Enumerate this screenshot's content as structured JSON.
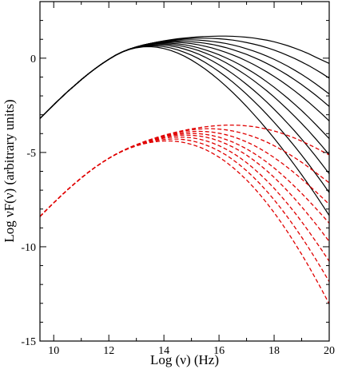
{
  "chart_data": {
    "type": "line",
    "title": "",
    "xlabel": "Log (ν)  (Hz)",
    "ylabel": "Log νF(ν)    (arbitrary units)",
    "xlim": [
      9.5,
      20
    ],
    "ylim": [
      -15,
      3
    ],
    "grid": false,
    "legend": "none",
    "x_ticks": [
      10,
      12,
      14,
      16,
      18,
      20
    ],
    "x_tick_labels": [
      "10",
      "12",
      "14",
      "16",
      "18",
      "20"
    ],
    "y_ticks": [
      0,
      -5,
      -10,
      -15
    ],
    "y_tick_labels": [
      "0",
      "-5",
      "-10",
      "-15"
    ],
    "x": [
      9.5,
      9.75,
      10.0,
      10.25,
      10.5,
      10.75,
      11.0,
      11.25,
      11.5,
      11.75,
      12.0,
      12.25,
      12.5,
      12.75,
      13.0,
      13.25,
      13.5,
      13.75,
      14.0,
      14.25,
      14.5,
      14.75,
      15.0,
      15.25,
      15.5,
      15.75,
      16.0,
      16.25,
      16.5,
      16.75,
      17.0,
      17.25,
      17.5,
      17.75,
      18.0,
      18.25,
      18.5,
      18.75,
      19.0,
      19.25,
      19.5,
      19.75,
      20.0
    ],
    "series": [
      {
        "color": "#000000",
        "style": "solid",
        "values": [
          -3.2,
          -2.83,
          -2.47,
          -2.12,
          -1.78,
          -1.46,
          -1.14,
          -0.84,
          -0.56,
          -0.3,
          -0.06,
          0.16,
          0.34,
          0.48,
          0.6,
          0.7,
          0.78,
          0.85,
          0.92,
          0.98,
          1.03,
          1.07,
          1.1,
          1.13,
          1.15,
          1.16,
          1.17,
          1.17,
          1.16,
          1.14,
          1.11,
          1.07,
          1.01,
          0.95,
          0.87,
          0.77,
          0.66,
          0.53,
          0.39,
          0.24,
          0.06,
          -0.11,
          -0.28
        ]
      },
      {
        "color": "#000000",
        "style": "solid",
        "values": [
          -3.2,
          -2.83,
          -2.47,
          -2.12,
          -1.78,
          -1.46,
          -1.14,
          -0.84,
          -0.56,
          -0.3,
          -0.06,
          0.16,
          0.34,
          0.48,
          0.6,
          0.7,
          0.78,
          0.85,
          0.91,
          0.96,
          1.0,
          1.03,
          1.05,
          1.06,
          1.06,
          1.05,
          1.03,
          1.0,
          0.96,
          0.9,
          0.83,
          0.75,
          0.66,
          0.55,
          0.43,
          0.29,
          0.14,
          -0.02,
          -0.2,
          -0.39,
          -0.6,
          -0.82,
          -1.06
        ]
      },
      {
        "color": "#000000",
        "style": "solid",
        "values": [
          -3.2,
          -2.83,
          -2.47,
          -2.12,
          -1.78,
          -1.46,
          -1.14,
          -0.84,
          -0.56,
          -0.3,
          -0.06,
          0.16,
          0.34,
          0.48,
          0.6,
          0.7,
          0.78,
          0.84,
          0.89,
          0.93,
          0.96,
          0.97,
          0.97,
          0.96,
          0.93,
          0.89,
          0.84,
          0.78,
          0.7,
          0.61,
          0.5,
          0.38,
          0.25,
          0.1,
          -0.06,
          -0.24,
          -0.43,
          -0.64,
          -0.86,
          -1.1,
          -1.35,
          -1.62,
          -1.9
        ]
      },
      {
        "color": "#000000",
        "style": "solid",
        "values": [
          -3.2,
          -2.83,
          -2.47,
          -2.12,
          -1.78,
          -1.46,
          -1.14,
          -0.84,
          -0.56,
          -0.3,
          -0.06,
          0.16,
          0.34,
          0.48,
          0.6,
          0.7,
          0.77,
          0.83,
          0.87,
          0.89,
          0.9,
          0.89,
          0.87,
          0.84,
          0.79,
          0.73,
          0.65,
          0.56,
          0.45,
          0.33,
          0.2,
          0.05,
          -0.11,
          -0.29,
          -0.48,
          -0.69,
          -0.91,
          -1.15,
          -1.4,
          -1.67,
          -1.95,
          -2.25,
          -2.56
        ]
      },
      {
        "color": "#000000",
        "style": "solid",
        "values": [
          -3.2,
          -2.83,
          -2.47,
          -2.12,
          -1.78,
          -1.46,
          -1.14,
          -0.84,
          -0.56,
          -0.3,
          -0.06,
          0.16,
          0.34,
          0.48,
          0.6,
          0.69,
          0.76,
          0.81,
          0.84,
          0.85,
          0.84,
          0.81,
          0.77,
          0.71,
          0.63,
          0.54,
          0.43,
          0.31,
          0.17,
          0.02,
          -0.15,
          -0.33,
          -0.53,
          -0.74,
          -0.97,
          -1.21,
          -1.47,
          -1.74,
          -2.03,
          -2.33,
          -2.65,
          -2.98,
          -3.33
        ]
      },
      {
        "color": "#000000",
        "style": "solid",
        "values": [
          -3.2,
          -2.83,
          -2.47,
          -2.12,
          -1.78,
          -1.46,
          -1.14,
          -0.84,
          -0.56,
          -0.3,
          -0.06,
          0.16,
          0.34,
          0.48,
          0.59,
          0.68,
          0.74,
          0.78,
          0.8,
          0.79,
          0.76,
          0.71,
          0.64,
          0.55,
          0.44,
          0.32,
          0.18,
          0.02,
          -0.15,
          -0.34,
          -0.55,
          -0.77,
          -1.01,
          -1.27,
          -1.54,
          -1.83,
          -2.13,
          -2.45,
          -2.78,
          -3.13,
          -3.5,
          -3.88,
          -4.27
        ]
      },
      {
        "color": "#000000",
        "style": "solid",
        "values": [
          -3.2,
          -2.83,
          -2.47,
          -2.12,
          -1.78,
          -1.46,
          -1.14,
          -0.84,
          -0.56,
          -0.3,
          -0.06,
          0.16,
          0.34,
          0.48,
          0.59,
          0.67,
          0.72,
          0.75,
          0.75,
          0.73,
          0.68,
          0.61,
          0.52,
          0.41,
          0.27,
          0.12,
          -0.05,
          -0.24,
          -0.45,
          -0.68,
          -0.92,
          -1.18,
          -1.46,
          -1.75,
          -2.06,
          -2.39,
          -2.73,
          -3.09,
          -3.46,
          -3.85,
          -4.26,
          -4.68,
          -5.12
        ]
      },
      {
        "color": "#000000",
        "style": "solid",
        "values": [
          -3.2,
          -2.83,
          -2.47,
          -2.12,
          -1.78,
          -1.46,
          -1.14,
          -0.84,
          -0.56,
          -0.3,
          -0.06,
          0.16,
          0.34,
          0.48,
          0.58,
          0.65,
          0.69,
          0.71,
          0.69,
          0.65,
          0.58,
          0.48,
          0.36,
          0.22,
          0.05,
          -0.14,
          -0.35,
          -0.58,
          -0.83,
          -1.1,
          -1.39,
          -1.69,
          -2.01,
          -2.35,
          -2.71,
          -3.08,
          -3.47,
          -3.87,
          -4.29,
          -4.73,
          -5.18,
          -5.65,
          -6.13
        ]
      },
      {
        "color": "#000000",
        "style": "solid",
        "values": [
          -3.2,
          -2.83,
          -2.47,
          -2.12,
          -1.78,
          -1.46,
          -1.14,
          -0.84,
          -0.56,
          -0.3,
          -0.06,
          0.16,
          0.34,
          0.47,
          0.57,
          0.63,
          0.66,
          0.65,
          0.61,
          0.54,
          0.44,
          0.31,
          0.16,
          -0.02,
          -0.23,
          -0.46,
          -0.71,
          -0.98,
          -1.27,
          -1.58,
          -1.91,
          -2.26,
          -2.62,
          -3.0,
          -3.4,
          -3.81,
          -4.24,
          -4.68,
          -5.14,
          -5.62,
          -6.11,
          -6.61,
          -7.13
        ]
      },
      {
        "color": "#000000",
        "style": "solid",
        "values": [
          -3.2,
          -2.83,
          -2.47,
          -2.12,
          -1.78,
          -1.46,
          -1.14,
          -0.84,
          -0.56,
          -0.3,
          -0.06,
          0.16,
          0.33,
          0.46,
          0.55,
          0.6,
          0.61,
          0.58,
          0.51,
          0.41,
          0.27,
          0.1,
          -0.1,
          -0.33,
          -0.58,
          -0.86,
          -1.16,
          -1.48,
          -1.82,
          -2.18,
          -2.56,
          -2.96,
          -3.37,
          -3.8,
          -4.25,
          -4.71,
          -5.19,
          -5.68,
          -6.18,
          -6.7,
          -7.23,
          -7.78,
          -8.34
        ]
      },
      {
        "color": "#e00000",
        "style": "dashed",
        "values": [
          -8.4,
          -8.03,
          -7.67,
          -7.32,
          -6.98,
          -6.66,
          -6.35,
          -6.06,
          -5.79,
          -5.54,
          -5.31,
          -5.1,
          -4.91,
          -4.74,
          -4.59,
          -4.45,
          -4.32,
          -4.2,
          -4.09,
          -3.99,
          -3.9,
          -3.82,
          -3.75,
          -3.69,
          -3.64,
          -3.6,
          -3.57,
          -3.55,
          -3.55,
          -3.56,
          -3.59,
          -3.63,
          -3.69,
          -3.77,
          -3.86,
          -3.97,
          -4.1,
          -4.24,
          -4.4,
          -4.57,
          -4.75,
          -4.94,
          -5.13
        ]
      },
      {
        "color": "#e00000",
        "style": "dashed",
        "values": [
          -8.4,
          -8.03,
          -7.67,
          -7.32,
          -6.98,
          -6.66,
          -6.35,
          -6.06,
          -5.79,
          -5.54,
          -5.31,
          -5.1,
          -4.91,
          -4.74,
          -4.59,
          -4.45,
          -4.32,
          -4.2,
          -4.1,
          -4.0,
          -3.92,
          -3.85,
          -3.8,
          -3.76,
          -3.74,
          -3.74,
          -3.76,
          -3.8,
          -3.86,
          -3.94,
          -4.04,
          -4.16,
          -4.3,
          -4.46,
          -4.64,
          -4.84,
          -5.05,
          -5.28,
          -5.52,
          -5.78,
          -6.05,
          -6.33,
          -6.61
        ]
      },
      {
        "color": "#e00000",
        "style": "dashed",
        "values": [
          -8.4,
          -8.03,
          -7.67,
          -7.32,
          -6.98,
          -6.66,
          -6.35,
          -6.06,
          -5.79,
          -5.54,
          -5.31,
          -5.1,
          -4.91,
          -4.74,
          -4.59,
          -4.45,
          -4.33,
          -4.22,
          -4.12,
          -4.04,
          -3.97,
          -3.92,
          -3.89,
          -3.88,
          -3.89,
          -3.92,
          -3.98,
          -4.06,
          -4.16,
          -4.29,
          -4.44,
          -4.61,
          -4.81,
          -5.03,
          -5.27,
          -5.53,
          -5.81,
          -6.1,
          -6.41,
          -6.73,
          -7.06,
          -7.4,
          -7.75
        ]
      },
      {
        "color": "#e00000",
        "style": "dashed",
        "values": [
          -8.4,
          -8.03,
          -7.67,
          -7.32,
          -6.98,
          -6.66,
          -6.35,
          -6.06,
          -5.79,
          -5.54,
          -5.31,
          -5.1,
          -4.91,
          -4.74,
          -4.59,
          -4.46,
          -4.34,
          -4.24,
          -4.15,
          -4.08,
          -4.03,
          -4.0,
          -3.99,
          -4.0,
          -4.04,
          -4.1,
          -4.19,
          -4.31,
          -4.45,
          -4.62,
          -4.81,
          -5.03,
          -5.27,
          -5.53,
          -5.82,
          -6.13,
          -6.46,
          -6.81,
          -7.17,
          -7.55,
          -7.94,
          -8.34,
          -8.75
        ]
      },
      {
        "color": "#e00000",
        "style": "dashed",
        "values": [
          -8.4,
          -8.03,
          -7.67,
          -7.32,
          -6.98,
          -6.66,
          -6.35,
          -6.06,
          -5.79,
          -5.54,
          -5.31,
          -5.1,
          -4.91,
          -4.74,
          -4.6,
          -4.47,
          -4.36,
          -4.27,
          -4.19,
          -4.13,
          -4.09,
          -4.08,
          -4.09,
          -4.12,
          -4.18,
          -4.27,
          -4.39,
          -4.54,
          -4.71,
          -4.91,
          -5.14,
          -5.4,
          -5.68,
          -5.99,
          -6.32,
          -6.68,
          -7.06,
          -7.46,
          -7.88,
          -8.32,
          -8.77,
          -9.24,
          -9.72
        ]
      },
      {
        "color": "#e00000",
        "style": "dashed",
        "values": [
          -8.4,
          -8.03,
          -7.67,
          -7.32,
          -6.98,
          -6.66,
          -6.35,
          -6.06,
          -5.79,
          -5.54,
          -5.31,
          -5.1,
          -4.92,
          -4.75,
          -4.61,
          -4.49,
          -4.39,
          -4.31,
          -4.24,
          -4.2,
          -4.18,
          -4.19,
          -4.22,
          -4.28,
          -4.37,
          -4.49,
          -4.64,
          -4.82,
          -5.03,
          -5.27,
          -5.54,
          -5.84,
          -6.17,
          -6.52,
          -6.9,
          -7.31,
          -7.74,
          -8.19,
          -8.67,
          -9.17,
          -9.69,
          -10.22,
          -10.77
        ]
      },
      {
        "color": "#e00000",
        "style": "dashed",
        "values": [
          -8.4,
          -8.03,
          -7.67,
          -7.32,
          -6.98,
          -6.66,
          -6.35,
          -6.06,
          -5.79,
          -5.54,
          -5.31,
          -5.1,
          -4.92,
          -4.76,
          -4.63,
          -4.52,
          -4.43,
          -4.36,
          -4.31,
          -4.29,
          -4.29,
          -4.32,
          -4.38,
          -4.47,
          -4.59,
          -4.74,
          -4.92,
          -5.13,
          -5.38,
          -5.66,
          -5.97,
          -6.31,
          -6.68,
          -7.08,
          -7.51,
          -7.97,
          -8.45,
          -8.96,
          -9.49,
          -10.05,
          -10.63,
          -11.23,
          -11.85
        ]
      },
      {
        "color": "#e00000",
        "style": "dashed",
        "values": [
          -8.4,
          -8.03,
          -7.67,
          -7.32,
          -6.98,
          -6.66,
          -6.35,
          -6.06,
          -5.79,
          -5.54,
          -5.31,
          -5.11,
          -4.93,
          -4.78,
          -4.65,
          -4.55,
          -4.47,
          -4.42,
          -4.39,
          -4.39,
          -4.42,
          -4.48,
          -4.57,
          -4.69,
          -4.84,
          -5.03,
          -5.25,
          -5.5,
          -5.79,
          -6.11,
          -6.46,
          -6.84,
          -7.26,
          -7.71,
          -8.19,
          -8.7,
          -9.24,
          -9.81,
          -10.4,
          -11.02,
          -11.67,
          -12.34,
          -13.03
        ]
      }
    ]
  }
}
